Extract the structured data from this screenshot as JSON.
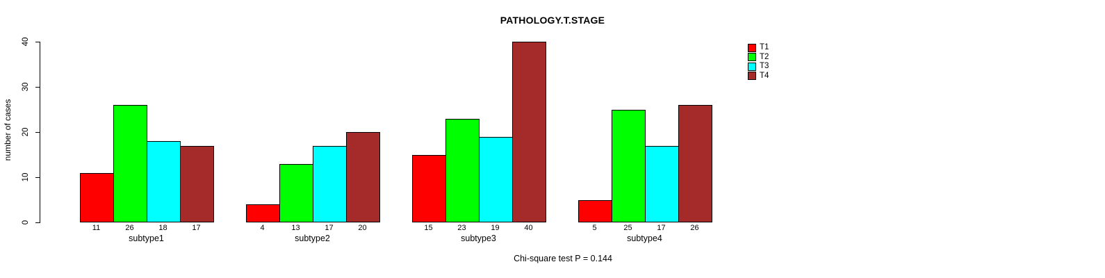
{
  "chart_data": {
    "type": "bar",
    "title": "PATHOLOGY.T.STAGE",
    "xlabel": "",
    "ylabel": "number of cases",
    "ylim": [
      0,
      40
    ],
    "yticks": [
      0,
      10,
      20,
      30,
      40
    ],
    "grid": false,
    "legend_position": "top-right-outside",
    "categories": [
      "subtype1",
      "subtype2",
      "subtype3",
      "subtype4"
    ],
    "series": [
      {
        "name": "T1",
        "color": "#ff0000",
        "values": [
          11,
          4,
          15,
          5
        ]
      },
      {
        "name": "T2",
        "color": "#00ff00",
        "values": [
          26,
          13,
          23,
          25
        ]
      },
      {
        "name": "T3",
        "color": "#00ffff",
        "values": [
          18,
          17,
          19,
          17
        ]
      },
      {
        "name": "T4",
        "color": "#a52a2a",
        "values": [
          17,
          20,
          40,
          26
        ]
      }
    ],
    "bar_value_labels": true,
    "annotation": "Chi-square test P = 0.144"
  }
}
